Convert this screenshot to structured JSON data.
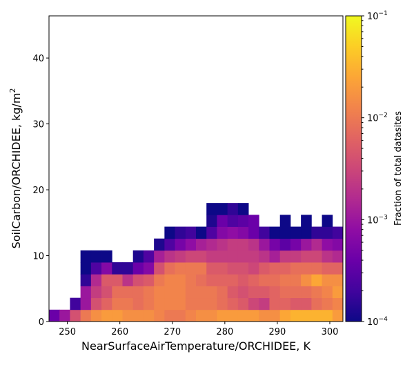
{
  "chart_data": {
    "type": "heatmap",
    "xlabel": "NearSurfaceAirTemperature/ORCHIDEE,  K",
    "ylabel": "SoilCarbon/ORCHIDEE,  kg/m",
    "ylabel_superscript": "2",
    "colorbar_label": "Fraction of total datasites",
    "colormap": "plasma",
    "colorbar_scale": "log",
    "colorbar_range": [
      0.0001,
      0.1
    ],
    "colorbar_ticks": [
      {
        "base": "10",
        "exp": "−4"
      },
      {
        "base": "10",
        "exp": "−3"
      },
      {
        "base": "10",
        "exp": "−2"
      },
      {
        "base": "10",
        "exp": "−1"
      }
    ],
    "xlim": [
      246.5,
      302.5
    ],
    "ylim": [
      0,
      46.4
    ],
    "xticks": [
      "250",
      "260",
      "270",
      "280",
      "290",
      "300"
    ],
    "xtick_values": [
      250,
      260,
      270,
      280,
      290,
      300
    ],
    "yticks": [
      "0",
      "10",
      "20",
      "30",
      "40"
    ],
    "ytick_values": [
      0,
      10,
      20,
      30,
      40
    ],
    "grid": false,
    "x_bin_edges": [
      246.5,
      248.5,
      250.5,
      252.5,
      254.5,
      256.5,
      258.5,
      260.5,
      262.5,
      264.5,
      266.5,
      268.5,
      270.5,
      272.5,
      274.5,
      276.5,
      278.5,
      280.5,
      282.5,
      284.5,
      286.5,
      288.5,
      290.5,
      292.5,
      294.5,
      296.5,
      298.5,
      300.5,
      302.5
    ],
    "y_bin_edges": [
      0,
      1.8,
      3.6,
      5.4,
      7.2,
      9.0,
      10.8,
      12.6,
      14.4,
      16.2,
      18.0
    ],
    "log10_fraction_rows_bottom_to_top": [
      [
        -3.4,
        -3.0,
        -2.4,
        -2.0,
        -1.8,
        -1.7,
        -1.7,
        -1.8,
        -1.8,
        -1.8,
        -1.9,
        -2.0,
        -2.0,
        -1.9,
        -1.8,
        -1.8,
        -1.7,
        -1.7,
        -1.7,
        -1.7,
        -1.8,
        -1.8,
        -1.6,
        -1.5,
        -1.5,
        -1.5,
        -1.5,
        -1.7
      ],
      [
        null,
        null,
        -3.7,
        -3.0,
        -2.4,
        -2.2,
        -2.0,
        -2.0,
        -2.1,
        -2.0,
        -1.9,
        -1.9,
        -1.9,
        -2.0,
        -2.0,
        -2.0,
        -2.1,
        -2.2,
        -2.3,
        -2.5,
        -2.6,
        -2.2,
        -2.2,
        -2.3,
        -2.3,
        -2.1,
        -2.0,
        -1.9
      ],
      [
        null,
        null,
        null,
        -3.0,
        -2.6,
        -2.4,
        -2.1,
        -2.1,
        -2.1,
        -2.0,
        -1.9,
        -1.9,
        -1.9,
        -2.0,
        -2.0,
        -2.0,
        -2.1,
        -2.3,
        -2.4,
        -2.3,
        -2.3,
        -2.2,
        -2.1,
        -2.1,
        -2.1,
        -2.0,
        -1.9,
        -1.7
      ],
      [
        null,
        null,
        null,
        -3.8,
        -2.8,
        -2.3,
        -2.3,
        -2.7,
        -2.4,
        -2.3,
        -2.0,
        -1.9,
        -1.9,
        -2.0,
        -2.1,
        -2.2,
        -2.2,
        -2.2,
        -2.3,
        -2.2,
        -2.1,
        -2.1,
        -2.0,
        -2.0,
        -1.8,
        -1.6,
        -1.8,
        -1.8
      ],
      [
        null,
        null,
        null,
        -4.0,
        -3.6,
        -3.2,
        -3.8,
        -3.8,
        -3.4,
        -3.2,
        -2.4,
        -2.1,
        -2.0,
        -2.0,
        -2.0,
        -2.3,
        -2.3,
        -2.4,
        -2.4,
        -2.5,
        -2.3,
        -2.2,
        -2.2,
        -2.1,
        -2.1,
        -2.1,
        -2.2,
        -2.2
      ],
      [
        null,
        null,
        null,
        -4.0,
        -4.0,
        -4.0,
        null,
        null,
        -3.9,
        -3.6,
        -2.9,
        -2.7,
        -2.6,
        -2.5,
        -2.5,
        -2.6,
        -2.6,
        -2.6,
        -2.6,
        -2.6,
        -2.7,
        -2.9,
        -2.6,
        -2.6,
        -2.5,
        -2.5,
        -2.7,
        -2.8
      ],
      [
        null,
        null,
        null,
        null,
        null,
        null,
        null,
        null,
        null,
        null,
        -3.9,
        -3.6,
        -3.3,
        -3.1,
        -2.9,
        -2.8,
        -2.7,
        -2.6,
        -2.6,
        -2.7,
        -3.0,
        -3.3,
        -3.5,
        -3.3,
        -3.0,
        -2.8,
        -3.1,
        -3.2
      ],
      [
        null,
        null,
        null,
        null,
        null,
        null,
        null,
        null,
        null,
        null,
        null,
        -4.0,
        -3.8,
        -3.7,
        -4.0,
        -3.6,
        -3.2,
        -3.1,
        -3.2,
        -3.4,
        -3.7,
        -4.0,
        -4.0,
        -4.0,
        -4.0,
        -3.8,
        -3.8,
        -3.7
      ],
      [
        null,
        null,
        null,
        null,
        null,
        null,
        null,
        null,
        null,
        null,
        null,
        null,
        null,
        null,
        null,
        -3.9,
        -3.4,
        -3.6,
        -3.5,
        -3.4,
        null,
        null,
        -4.0,
        null,
        -4.0,
        null,
        -4.0,
        null
      ],
      [
        null,
        null,
        null,
        null,
        null,
        null,
        null,
        null,
        null,
        null,
        null,
        null,
        null,
        null,
        null,
        -4.0,
        -4.0,
        -3.8,
        -4.0,
        null,
        null,
        null,
        null,
        null,
        null,
        null,
        null,
        null
      ]
    ]
  }
}
